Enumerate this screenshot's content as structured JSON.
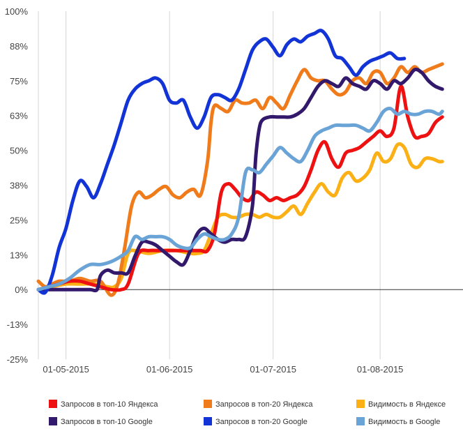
{
  "chart_data": {
    "type": "line",
    "title": "",
    "xlabel": "",
    "ylabel": "",
    "x_ticks": [
      "01-05-2015",
      "01-06-2015",
      "01-07-2015",
      "01-08-2015"
    ],
    "y_ticks": [
      "100%",
      "88%",
      "75%",
      "63%",
      "50%",
      "38%",
      "25%",
      "13%",
      "0%",
      "-13%",
      "-25%"
    ],
    "ylim": [
      -25,
      100
    ],
    "xlim_days": [
      0,
      123
    ],
    "grid": "vertical",
    "legend_position": "bottom",
    "series": [
      {
        "name": "Запросов в топ-10 Яндекса",
        "color": "#ee1111",
        "points": [
          [
            0,
            0
          ],
          [
            3,
            1
          ],
          [
            6,
            2
          ],
          [
            9,
            3
          ],
          [
            12,
            3
          ],
          [
            15,
            2
          ],
          [
            18,
            1
          ],
          [
            21,
            0
          ],
          [
            24,
            0
          ],
          [
            26,
            2
          ],
          [
            29,
            13
          ],
          [
            32,
            14
          ],
          [
            35,
            14
          ],
          [
            38,
            14
          ],
          [
            41,
            14
          ],
          [
            44,
            14
          ],
          [
            47,
            14
          ],
          [
            49,
            14
          ],
          [
            51,
            20
          ],
          [
            53,
            35
          ],
          [
            55,
            38
          ],
          [
            57,
            36
          ],
          [
            59,
            33
          ],
          [
            61,
            32
          ],
          [
            63,
            35
          ],
          [
            65,
            34
          ],
          [
            67,
            32
          ],
          [
            69,
            33
          ],
          [
            71,
            32
          ],
          [
            73,
            33
          ],
          [
            75,
            34
          ],
          [
            77,
            37
          ],
          [
            79,
            43
          ],
          [
            81,
            50
          ],
          [
            83,
            53
          ],
          [
            85,
            47
          ],
          [
            87,
            44
          ],
          [
            89,
            49
          ],
          [
            91,
            50
          ],
          [
            93,
            51
          ],
          [
            95,
            53
          ],
          [
            97,
            55
          ],
          [
            99,
            57
          ],
          [
            101,
            55
          ],
          [
            103,
            58
          ],
          [
            105,
            73
          ],
          [
            107,
            62
          ],
          [
            109,
            55
          ],
          [
            111,
            55
          ],
          [
            113,
            56
          ],
          [
            115,
            60
          ],
          [
            117,
            62
          ]
        ]
      },
      {
        "name": "Запросов в топ-20 Яндекса",
        "color": "#f07b1a",
        "points": [
          [
            0,
            3
          ],
          [
            2,
            1
          ],
          [
            4,
            2
          ],
          [
            6,
            3
          ],
          [
            9,
            3
          ],
          [
            12,
            4
          ],
          [
            15,
            3
          ],
          [
            18,
            3
          ],
          [
            21,
            -2
          ],
          [
            23,
            2
          ],
          [
            25,
            15
          ],
          [
            27,
            30
          ],
          [
            29,
            35
          ],
          [
            31,
            33
          ],
          [
            33,
            34
          ],
          [
            35,
            36
          ],
          [
            37,
            37
          ],
          [
            39,
            34
          ],
          [
            41,
            33
          ],
          [
            43,
            35
          ],
          [
            45,
            36
          ],
          [
            47,
            34
          ],
          [
            49,
            46
          ],
          [
            50,
            60
          ],
          [
            51,
            66
          ],
          [
            53,
            65
          ],
          [
            55,
            64
          ],
          [
            57,
            68
          ],
          [
            59,
            67
          ],
          [
            61,
            67
          ],
          [
            63,
            68
          ],
          [
            65,
            65
          ],
          [
            67,
            69
          ],
          [
            69,
            67
          ],
          [
            71,
            65
          ],
          [
            73,
            70
          ],
          [
            75,
            75
          ],
          [
            77,
            79
          ],
          [
            79,
            76
          ],
          [
            81,
            75
          ],
          [
            83,
            75
          ],
          [
            85,
            72
          ],
          [
            87,
            70
          ],
          [
            89,
            71
          ],
          [
            91,
            75
          ],
          [
            93,
            76
          ],
          [
            95,
            74
          ],
          [
            97,
            78
          ],
          [
            99,
            78
          ],
          [
            101,
            74
          ],
          [
            103,
            76
          ],
          [
            105,
            80
          ],
          [
            107,
            78
          ],
          [
            109,
            80
          ],
          [
            111,
            78
          ],
          [
            113,
            79
          ],
          [
            115,
            80
          ],
          [
            117,
            81
          ]
        ]
      },
      {
        "name": "Видимость в Яндексе",
        "color": "#fbb016",
        "points": [
          [
            0,
            0
          ],
          [
            4,
            1
          ],
          [
            8,
            2
          ],
          [
            12,
            2
          ],
          [
            16,
            2
          ],
          [
            20,
            1
          ],
          [
            22,
            1
          ],
          [
            24,
            4
          ],
          [
            26,
            13
          ],
          [
            28,
            14
          ],
          [
            32,
            13
          ],
          [
            36,
            14
          ],
          [
            40,
            14
          ],
          [
            44,
            13
          ],
          [
            46,
            13
          ],
          [
            48,
            14
          ],
          [
            50,
            20
          ],
          [
            52,
            26
          ],
          [
            54,
            27
          ],
          [
            56,
            26
          ],
          [
            58,
            26
          ],
          [
            60,
            27
          ],
          [
            62,
            27
          ],
          [
            64,
            26
          ],
          [
            66,
            27
          ],
          [
            68,
            26
          ],
          [
            70,
            26
          ],
          [
            72,
            28
          ],
          [
            74,
            30
          ],
          [
            76,
            27
          ],
          [
            78,
            31
          ],
          [
            80,
            35
          ],
          [
            82,
            38
          ],
          [
            84,
            35
          ],
          [
            86,
            34
          ],
          [
            88,
            40
          ],
          [
            90,
            42
          ],
          [
            92,
            39
          ],
          [
            94,
            40
          ],
          [
            96,
            43
          ],
          [
            98,
            49
          ],
          [
            100,
            46
          ],
          [
            102,
            47
          ],
          [
            104,
            52
          ],
          [
            106,
            51
          ],
          [
            108,
            45
          ],
          [
            110,
            44
          ],
          [
            112,
            47
          ],
          [
            114,
            47
          ],
          [
            116,
            46
          ],
          [
            117,
            46
          ]
        ]
      },
      {
        "name": "Запросов в топ-10 Google",
        "color": "#33196b",
        "points": [
          [
            0,
            0
          ],
          [
            4,
            0
          ],
          [
            8,
            0
          ],
          [
            12,
            0
          ],
          [
            15,
            0
          ],
          [
            17,
            0
          ],
          [
            18,
            5
          ],
          [
            20,
            7
          ],
          [
            22,
            6
          ],
          [
            24,
            6
          ],
          [
            26,
            6
          ],
          [
            28,
            12
          ],
          [
            30,
            17
          ],
          [
            32,
            17
          ],
          [
            34,
            16
          ],
          [
            36,
            14
          ],
          [
            38,
            12
          ],
          [
            40,
            10
          ],
          [
            42,
            9
          ],
          [
            44,
            14
          ],
          [
            46,
            20
          ],
          [
            48,
            22
          ],
          [
            50,
            20
          ],
          [
            52,
            18
          ],
          [
            54,
            17
          ],
          [
            56,
            18
          ],
          [
            58,
            18
          ],
          [
            60,
            19
          ],
          [
            62,
            30
          ],
          [
            63,
            48
          ],
          [
            64,
            58
          ],
          [
            65,
            61
          ],
          [
            67,
            62
          ],
          [
            69,
            62
          ],
          [
            71,
            62
          ],
          [
            73,
            62
          ],
          [
            75,
            63
          ],
          [
            77,
            65
          ],
          [
            79,
            69
          ],
          [
            81,
            73
          ],
          [
            83,
            75
          ],
          [
            85,
            74
          ],
          [
            87,
            73
          ],
          [
            89,
            76
          ],
          [
            91,
            74
          ],
          [
            93,
            73
          ],
          [
            95,
            72
          ],
          [
            97,
            75
          ],
          [
            99,
            74
          ],
          [
            101,
            72
          ],
          [
            103,
            75
          ],
          [
            105,
            74
          ],
          [
            107,
            76
          ],
          [
            109,
            79
          ],
          [
            111,
            78
          ],
          [
            113,
            75
          ],
          [
            115,
            73
          ],
          [
            117,
            72
          ]
        ]
      },
      {
        "name": "Запросов в топ-20 Google",
        "color": "#1234d6",
        "points": [
          [
            0,
            0
          ],
          [
            2,
            -1
          ],
          [
            4,
            5
          ],
          [
            6,
            15
          ],
          [
            8,
            22
          ],
          [
            10,
            32
          ],
          [
            12,
            39
          ],
          [
            14,
            37
          ],
          [
            16,
            33
          ],
          [
            18,
            38
          ],
          [
            20,
            45
          ],
          [
            22,
            52
          ],
          [
            24,
            60
          ],
          [
            26,
            68
          ],
          [
            28,
            72
          ],
          [
            30,
            74
          ],
          [
            32,
            75
          ],
          [
            34,
            76
          ],
          [
            36,
            74
          ],
          [
            38,
            68
          ],
          [
            40,
            67
          ],
          [
            42,
            68
          ],
          [
            44,
            62
          ],
          [
            46,
            58
          ],
          [
            48,
            62
          ],
          [
            50,
            69
          ],
          [
            52,
            70
          ],
          [
            54,
            69
          ],
          [
            56,
            68
          ],
          [
            58,
            72
          ],
          [
            60,
            79
          ],
          [
            62,
            86
          ],
          [
            64,
            89
          ],
          [
            66,
            90
          ],
          [
            68,
            87
          ],
          [
            70,
            84
          ],
          [
            72,
            88
          ],
          [
            74,
            90
          ],
          [
            76,
            89
          ],
          [
            78,
            91
          ],
          [
            80,
            92
          ],
          [
            82,
            93
          ],
          [
            84,
            90
          ],
          [
            86,
            84
          ],
          [
            88,
            83
          ],
          [
            90,
            80
          ],
          [
            92,
            77
          ],
          [
            94,
            80
          ],
          [
            96,
            82
          ],
          [
            98,
            83
          ],
          [
            100,
            84
          ],
          [
            102,
            85
          ],
          [
            104,
            83
          ],
          [
            106,
            83
          ]
        ]
      },
      {
        "name": "Видимость в Google",
        "color": "#6aa3d5",
        "points": [
          [
            0,
            0
          ],
          [
            3,
            1
          ],
          [
            6,
            2
          ],
          [
            9,
            4
          ],
          [
            12,
            7
          ],
          [
            15,
            9
          ],
          [
            18,
            9
          ],
          [
            21,
            10
          ],
          [
            24,
            12
          ],
          [
            26,
            14
          ],
          [
            28,
            19
          ],
          [
            30,
            18
          ],
          [
            32,
            19
          ],
          [
            34,
            19
          ],
          [
            36,
            19
          ],
          [
            38,
            18
          ],
          [
            40,
            16
          ],
          [
            42,
            15
          ],
          [
            44,
            15
          ],
          [
            46,
            18
          ],
          [
            48,
            20
          ],
          [
            50,
            19
          ],
          [
            52,
            18
          ],
          [
            54,
            18
          ],
          [
            56,
            20
          ],
          [
            58,
            26
          ],
          [
            60,
            42
          ],
          [
            62,
            43
          ],
          [
            64,
            42
          ],
          [
            66,
            45
          ],
          [
            68,
            48
          ],
          [
            70,
            51
          ],
          [
            72,
            49
          ],
          [
            74,
            47
          ],
          [
            76,
            46
          ],
          [
            78,
            50
          ],
          [
            80,
            55
          ],
          [
            82,
            57
          ],
          [
            84,
            58
          ],
          [
            86,
            59
          ],
          [
            88,
            59
          ],
          [
            90,
            59
          ],
          [
            92,
            59
          ],
          [
            94,
            58
          ],
          [
            96,
            57
          ],
          [
            98,
            60
          ],
          [
            100,
            64
          ],
          [
            102,
            65
          ],
          [
            104,
            63
          ],
          [
            106,
            64
          ],
          [
            108,
            63
          ],
          [
            110,
            63
          ],
          [
            112,
            64
          ],
          [
            114,
            64
          ],
          [
            116,
            63
          ],
          [
            117,
            64
          ]
        ]
      }
    ]
  }
}
